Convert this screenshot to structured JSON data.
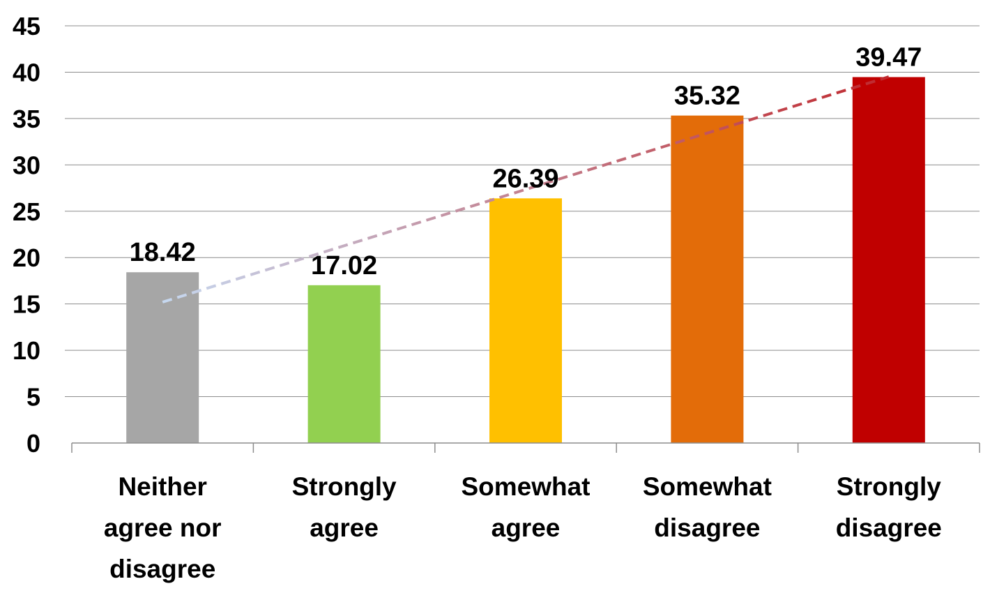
{
  "chart_data": {
    "type": "bar",
    "categories": [
      [
        "Neither",
        "agree nor",
        "disagree"
      ],
      [
        "Strongly",
        "agree"
      ],
      [
        "Somewhat",
        "agree"
      ],
      [
        "Somewhat",
        "disagree"
      ],
      [
        "Strongly",
        "disagree"
      ]
    ],
    "values": [
      18.42,
      17.02,
      26.39,
      35.32,
      39.47
    ],
    "value_labels": [
      "18.42",
      "17.02",
      "26.39",
      "35.32",
      "39.47"
    ],
    "bar_colors": [
      "#a6a6a6",
      "#92d050",
      "#ffc000",
      "#e36c09",
      "#c00000"
    ],
    "ylim": [
      0,
      45
    ],
    "yticks": [
      0,
      5,
      10,
      15,
      20,
      25,
      30,
      35,
      40,
      45
    ],
    "grid": true,
    "legend": "none",
    "title": "",
    "xlabel": "",
    "ylabel": "",
    "trendline": {
      "type": "linear",
      "style": "dashed",
      "color_start": "#c6d9f1",
      "color_end": "#c0282d",
      "start_value": 15.2,
      "end_value": 39.5
    }
  }
}
